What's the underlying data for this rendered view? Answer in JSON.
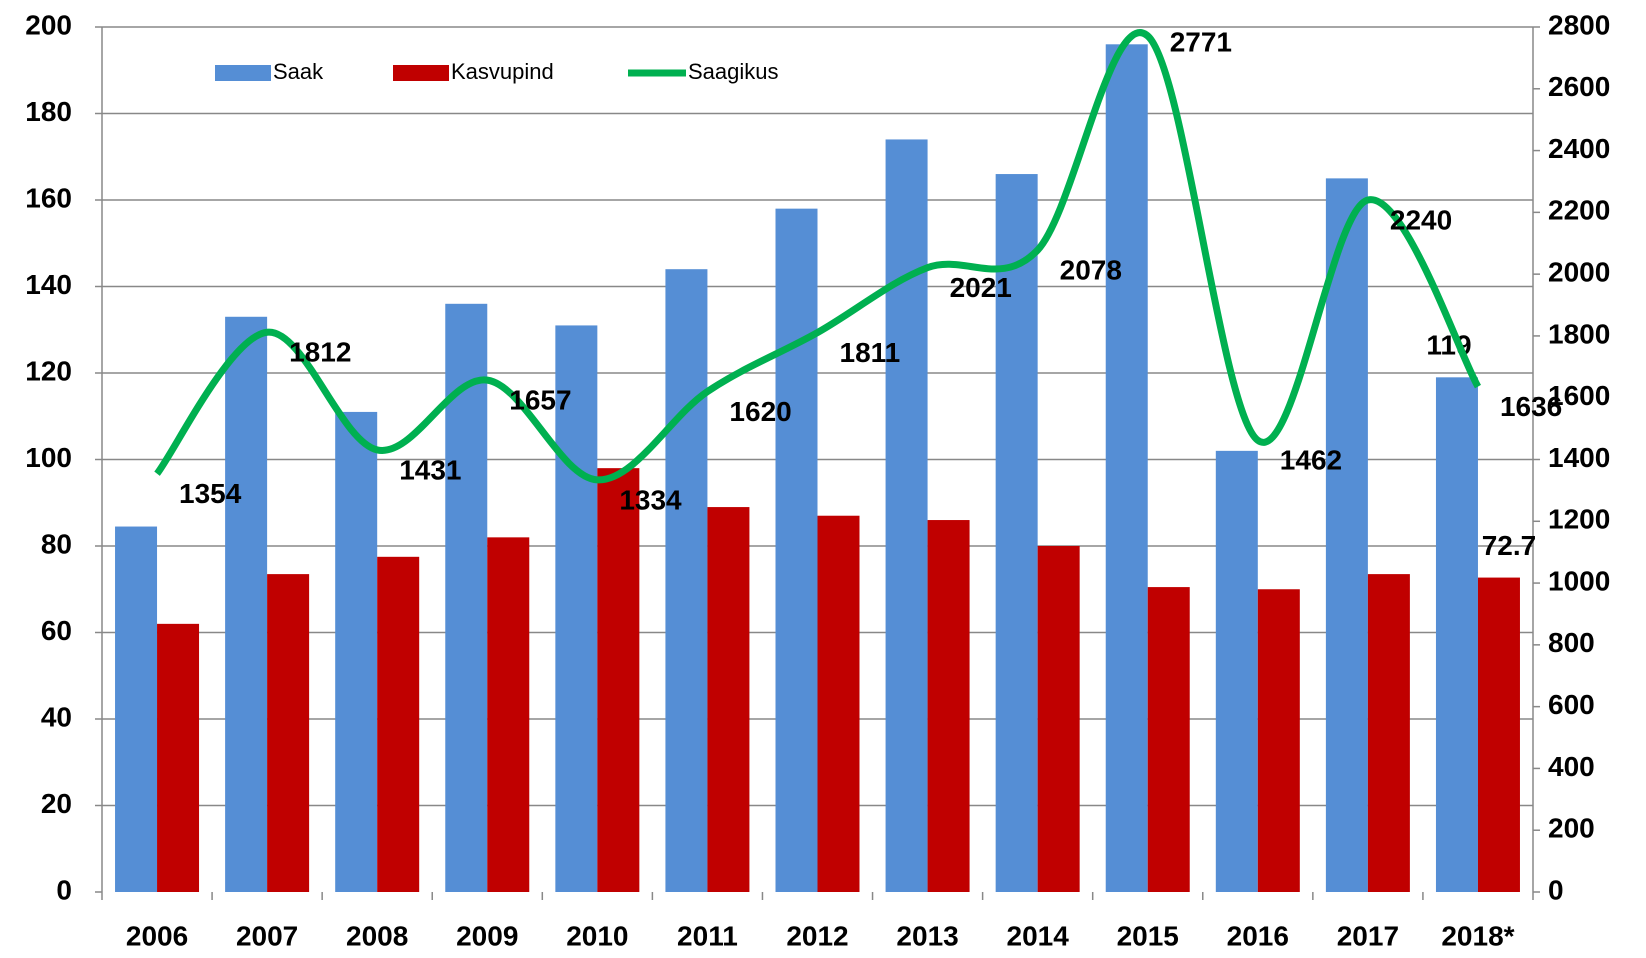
{
  "chart_data": {
    "type": "bar_line",
    "categories": [
      "2006",
      "2007",
      "2008",
      "2009",
      "2010",
      "2011",
      "2012",
      "2013",
      "2014",
      "2015",
      "2016",
      "2017",
      "2018*"
    ],
    "series": [
      {
        "name": "Saak",
        "color": "#558ed5",
        "type": "bar",
        "axis": "y",
        "values": [
          84.5,
          133,
          111,
          136,
          131,
          144,
          158,
          174,
          166,
          196,
          102,
          165,
          119
        ],
        "value_labels": [
          null,
          null,
          null,
          null,
          null,
          null,
          null,
          null,
          null,
          null,
          null,
          null,
          "119"
        ]
      },
      {
        "name": "Kasvupind",
        "color": "#c00000",
        "type": "bar",
        "axis": "y",
        "values": [
          62,
          73.5,
          77.5,
          82,
          98,
          89,
          87,
          86,
          80,
          70.5,
          70,
          73.5,
          72.7
        ],
        "value_labels": [
          null,
          null,
          null,
          null,
          null,
          null,
          null,
          null,
          null,
          null,
          null,
          null,
          "72.7"
        ]
      },
      {
        "name": "Saagikus",
        "color": "#00b050",
        "type": "line",
        "axis": "y2",
        "values": [
          1354,
          1812,
          1431,
          1657,
          1334,
          1620,
          1811,
          2021,
          2078,
          2771,
          1462,
          2240,
          1636
        ],
        "value_labels": [
          "1354",
          "1812",
          "1431",
          "1657",
          "1334",
          "1620",
          "1811",
          "2021",
          "2078",
          "2771",
          "1462",
          "2240",
          "1636"
        ]
      }
    ],
    "ylim": [
      0,
      200
    ],
    "yticks": [
      0,
      20,
      40,
      60,
      80,
      100,
      120,
      140,
      160,
      180,
      200
    ],
    "y2lim": [
      0,
      2800
    ],
    "y2ticks": [
      0,
      200,
      400,
      600,
      800,
      1000,
      1200,
      1400,
      1600,
      1800,
      2000,
      2200,
      2400,
      2600,
      2800
    ],
    "grid": true,
    "legend": "top-left"
  }
}
